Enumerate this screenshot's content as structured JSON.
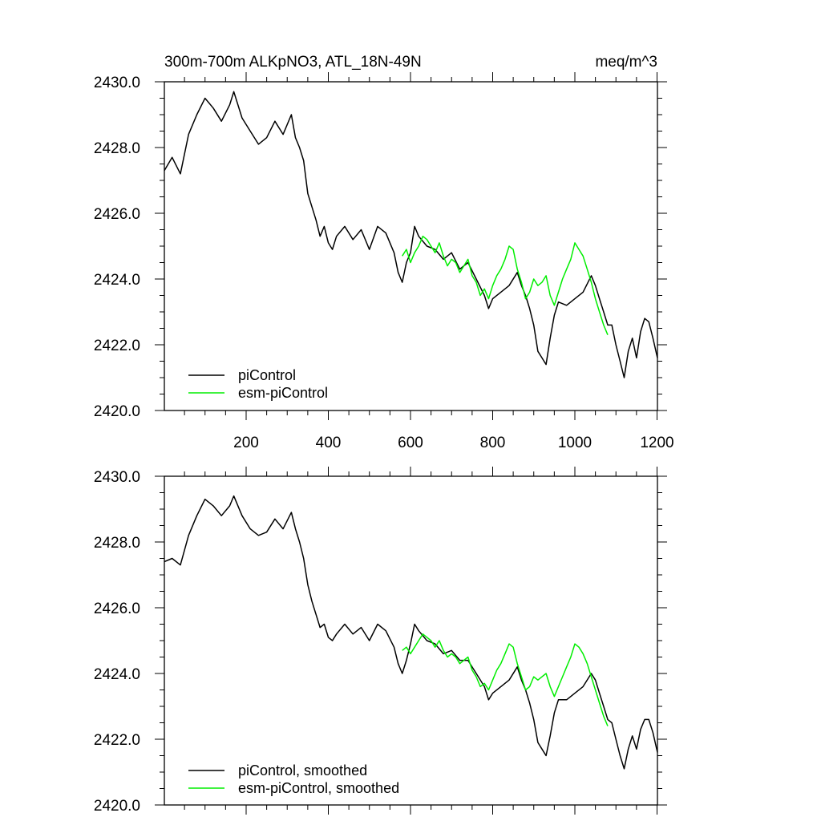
{
  "header": {
    "title": "300m-700m ALKpNO3, ATL_18N-49N",
    "units": "meq/m^3"
  },
  "colors": {
    "piControl": "#000000",
    "esm_piControl": "#00ee00"
  },
  "chart_data": [
    {
      "type": "line",
      "panel": "top",
      "xlim": [
        1,
        1201
      ],
      "ylim": [
        2420,
        2430
      ],
      "xticks": [
        200,
        400,
        600,
        800,
        1000,
        1200
      ],
      "xtick_labels": [
        "200",
        "400",
        "600",
        "800",
        "1000",
        "1200"
      ],
      "yticks": [
        2420,
        2422,
        2424,
        2426,
        2428,
        2430
      ],
      "ytick_labels": [
        "2420.0",
        "2422.0",
        "2424.0",
        "2426.0",
        "2428.0",
        "2430.0"
      ],
      "grid": false,
      "legend_position": "bottom-left",
      "series": [
        {
          "name": "piControl",
          "color": "#000000",
          "x": [
            1,
            20,
            40,
            60,
            80,
            100,
            120,
            140,
            160,
            170,
            190,
            210,
            230,
            250,
            270,
            290,
            310,
            320,
            330,
            340,
            350,
            360,
            370,
            380,
            390,
            400,
            410,
            420,
            440,
            460,
            480,
            500,
            520,
            540,
            560,
            570,
            580,
            590,
            600,
            610,
            620,
            640,
            660,
            680,
            700,
            720,
            740,
            760,
            780,
            790,
            800,
            820,
            840,
            860,
            870,
            880,
            890,
            900,
            910,
            920,
            930,
            940,
            950,
            960,
            980,
            1000,
            1020,
            1040,
            1050,
            1060,
            1070,
            1080,
            1090,
            1100,
            1110,
            1120,
            1130,
            1140,
            1150,
            1160,
            1170,
            1180,
            1190,
            1201
          ],
          "y": [
            2427.3,
            2427.7,
            2427.2,
            2428.4,
            2429.0,
            2429.5,
            2429.2,
            2428.8,
            2429.3,
            2429.7,
            2428.9,
            2428.5,
            2428.1,
            2428.3,
            2428.8,
            2428.4,
            2429.0,
            2428.3,
            2428.0,
            2427.6,
            2426.6,
            2426.2,
            2425.8,
            2425.3,
            2425.6,
            2425.1,
            2424.9,
            2425.3,
            2425.6,
            2425.2,
            2425.5,
            2424.9,
            2425.6,
            2425.4,
            2424.8,
            2424.2,
            2423.9,
            2424.5,
            2424.8,
            2425.6,
            2425.3,
            2425.0,
            2424.9,
            2424.6,
            2424.8,
            2424.3,
            2424.5,
            2424.0,
            2423.5,
            2423.1,
            2423.4,
            2423.6,
            2423.8,
            2424.2,
            2423.8,
            2423.5,
            2423.1,
            2422.6,
            2421.8,
            2421.6,
            2421.4,
            2422.2,
            2422.9,
            2423.3,
            2423.2,
            2423.4,
            2423.6,
            2424.1,
            2423.8,
            2423.4,
            2423.0,
            2422.6,
            2422.6,
            2422.0,
            2421.5,
            2421.0,
            2421.8,
            2422.2,
            2421.6,
            2422.4,
            2422.8,
            2422.7,
            2422.2,
            2421.6
          ]
        },
        {
          "name": "esm-piControl",
          "color": "#00ee00",
          "x": [
            580,
            590,
            600,
            610,
            620,
            630,
            640,
            650,
            660,
            670,
            680,
            690,
            700,
            710,
            720,
            730,
            740,
            750,
            760,
            770,
            780,
            790,
            800,
            810,
            820,
            830,
            840,
            850,
            860,
            870,
            880,
            890,
            900,
            910,
            920,
            930,
            940,
            950,
            960,
            970,
            980,
            990,
            1000,
            1010,
            1020,
            1030,
            1040,
            1050,
            1060,
            1070,
            1080
          ],
          "y": [
            2424.7,
            2424.9,
            2424.5,
            2424.8,
            2425.0,
            2425.3,
            2425.2,
            2425.0,
            2424.8,
            2425.1,
            2424.7,
            2424.4,
            2424.6,
            2424.5,
            2424.2,
            2424.4,
            2424.6,
            2424.1,
            2423.9,
            2423.5,
            2423.7,
            2423.4,
            2423.8,
            2424.1,
            2424.3,
            2424.6,
            2425.0,
            2424.9,
            2424.3,
            2423.9,
            2423.4,
            2423.6,
            2424.0,
            2423.8,
            2423.9,
            2424.1,
            2423.5,
            2423.2,
            2423.6,
            2424.0,
            2424.3,
            2424.6,
            2425.1,
            2424.9,
            2424.7,
            2424.3,
            2423.9,
            2423.4,
            2423.0,
            2422.6,
            2422.3
          ]
        }
      ],
      "legend": [
        "piControl",
        "esm-piControl"
      ]
    },
    {
      "type": "line",
      "panel": "bottom",
      "xlim": [
        1,
        1201
      ],
      "ylim": [
        2420,
        2430
      ],
      "yticks": [
        2420,
        2422,
        2424,
        2426,
        2428,
        2430
      ],
      "ytick_labels": [
        "2420.0",
        "2422.0",
        "2424.0",
        "2426.0",
        "2428.0",
        "2430.0"
      ],
      "grid": false,
      "legend_position": "bottom-left",
      "series": [
        {
          "name": "piControl, smoothed",
          "color": "#000000",
          "x": [
            1,
            20,
            40,
            60,
            80,
            100,
            120,
            140,
            160,
            170,
            190,
            210,
            230,
            250,
            270,
            290,
            310,
            320,
            330,
            340,
            350,
            360,
            370,
            380,
            390,
            400,
            410,
            420,
            440,
            460,
            480,
            500,
            520,
            540,
            560,
            570,
            580,
            590,
            600,
            610,
            620,
            640,
            660,
            680,
            700,
            720,
            740,
            760,
            780,
            790,
            800,
            820,
            840,
            860,
            870,
            880,
            890,
            900,
            910,
            920,
            930,
            940,
            950,
            960,
            980,
            1000,
            1020,
            1040,
            1050,
            1060,
            1070,
            1080,
            1090,
            1100,
            1110,
            1120,
            1130,
            1140,
            1150,
            1160,
            1170,
            1180,
            1190,
            1201
          ],
          "y": [
            2427.4,
            2427.5,
            2427.3,
            2428.2,
            2428.8,
            2429.3,
            2429.1,
            2428.8,
            2429.1,
            2429.4,
            2428.8,
            2428.4,
            2428.2,
            2428.3,
            2428.7,
            2428.4,
            2428.9,
            2428.4,
            2428.0,
            2427.5,
            2426.7,
            2426.2,
            2425.8,
            2425.4,
            2425.5,
            2425.1,
            2425.0,
            2425.2,
            2425.5,
            2425.2,
            2425.4,
            2425.0,
            2425.5,
            2425.3,
            2424.8,
            2424.3,
            2424.0,
            2424.4,
            2424.9,
            2425.5,
            2425.3,
            2425.0,
            2424.9,
            2424.6,
            2424.7,
            2424.4,
            2424.4,
            2424.0,
            2423.6,
            2423.2,
            2423.4,
            2423.6,
            2423.8,
            2424.2,
            2423.8,
            2423.5,
            2423.1,
            2422.6,
            2421.9,
            2421.7,
            2421.5,
            2422.1,
            2422.8,
            2423.2,
            2423.2,
            2423.4,
            2423.6,
            2424.0,
            2423.8,
            2423.4,
            2423.0,
            2422.6,
            2422.5,
            2422.0,
            2421.5,
            2421.1,
            2421.7,
            2422.1,
            2421.7,
            2422.3,
            2422.6,
            2422.6,
            2422.2,
            2421.6
          ]
        },
        {
          "name": "esm-piControl, smoothed",
          "color": "#00ee00",
          "x": [
            580,
            590,
            600,
            610,
            620,
            630,
            640,
            650,
            660,
            670,
            680,
            690,
            700,
            710,
            720,
            730,
            740,
            750,
            760,
            770,
            780,
            790,
            800,
            810,
            820,
            830,
            840,
            850,
            860,
            870,
            880,
            890,
            900,
            910,
            920,
            930,
            940,
            950,
            960,
            970,
            980,
            990,
            1000,
            1010,
            1020,
            1030,
            1040,
            1050,
            1060,
            1070,
            1080
          ],
          "y": [
            2424.7,
            2424.8,
            2424.6,
            2424.8,
            2425.0,
            2425.2,
            2425.1,
            2425.0,
            2424.8,
            2425.0,
            2424.7,
            2424.5,
            2424.6,
            2424.5,
            2424.3,
            2424.4,
            2424.5,
            2424.1,
            2423.9,
            2423.6,
            2423.7,
            2423.5,
            2423.8,
            2424.1,
            2424.3,
            2424.6,
            2424.9,
            2424.8,
            2424.3,
            2423.9,
            2423.5,
            2423.6,
            2423.9,
            2423.8,
            2423.9,
            2424.0,
            2423.6,
            2423.3,
            2423.6,
            2423.9,
            2424.2,
            2424.5,
            2424.9,
            2424.8,
            2424.6,
            2424.3,
            2423.9,
            2423.5,
            2423.1,
            2422.7,
            2422.4
          ]
        }
      ],
      "legend": [
        "piControl, smoothed",
        "esm-piControl, smoothed"
      ]
    }
  ]
}
